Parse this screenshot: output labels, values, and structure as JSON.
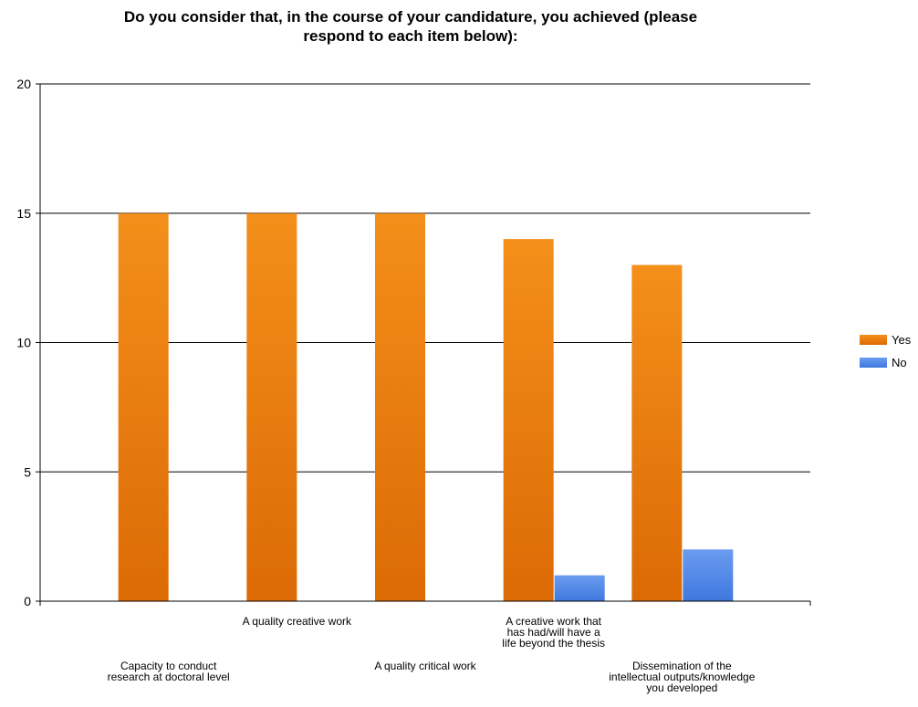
{
  "chart_data": {
    "type": "bar",
    "title_lines": [
      "Do you consider that, in the course of your candidature, you achieved (please",
      "respond to each item below):"
    ],
    "categories": [
      [
        "Capacity to conduct",
        "research at doctoral level"
      ],
      [
        "A quality creative work"
      ],
      [
        "A quality critical work"
      ],
      [
        "A creative work that",
        "has had/will have a",
        "life beyond the thesis"
      ],
      [
        "Dissemination of the",
        "intellectual outputs/knowledge",
        "you developed"
      ]
    ],
    "series": [
      {
        "name": "Yes",
        "values": [
          15,
          15,
          15,
          14,
          13
        ],
        "color": "#e8740c"
      },
      {
        "name": "No",
        "values": [
          0,
          0,
          0,
          1,
          2
        ],
        "color": "#4f86e8"
      }
    ],
    "yticks": [
      0,
      5,
      10,
      15,
      20
    ],
    "ylim": [
      0,
      20
    ],
    "grid": true,
    "legend_position": "right"
  }
}
